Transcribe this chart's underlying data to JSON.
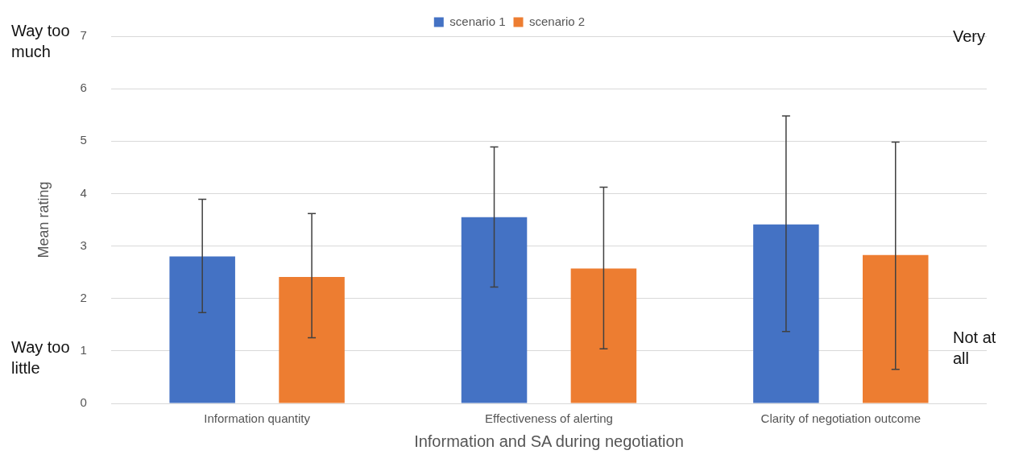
{
  "chart_data": {
    "type": "bar",
    "xlabel": "Information and SA during negotiation",
    "ylabel": "Mean rating",
    "categories": [
      "Information quantity",
      "Effectiveness of alerting",
      "Clarity of negotiation outcome"
    ],
    "series": [
      {
        "name": "scenario 1",
        "color": "#4472c4",
        "values": [
          2.8,
          3.55,
          3.41
        ],
        "errors": [
          [
            1.73,
            3.89
          ],
          [
            2.22,
            4.89
          ],
          [
            1.37,
            5.48
          ]
        ]
      },
      {
        "name": "scenario 2",
        "color": "#ed7d31",
        "values": [
          2.41,
          2.57,
          2.83
        ],
        "errors": [
          [
            1.25,
            3.62
          ],
          [
            1.04,
            4.12
          ],
          [
            0.65,
            4.98
          ]
        ]
      }
    ],
    "ylim": [
      0,
      7
    ],
    "yticks": [
      0,
      1,
      2,
      3,
      4,
      5,
      6,
      7
    ],
    "grid": "y",
    "legend": "top",
    "annotations": [
      "Way too much",
      "Way too little",
      "Very",
      "Not at all"
    ]
  }
}
